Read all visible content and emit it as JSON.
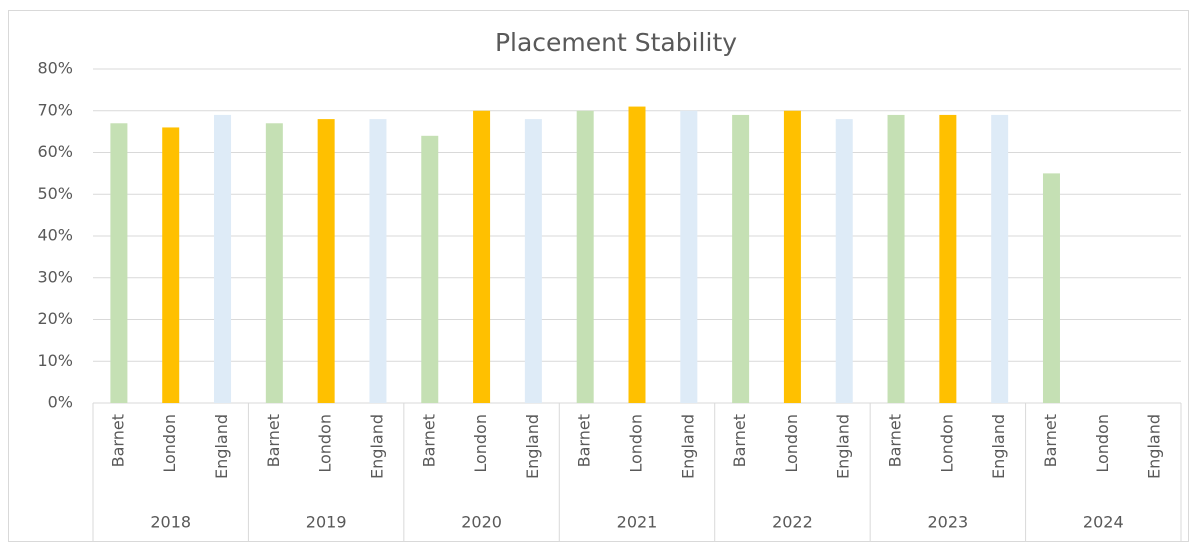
{
  "chart_data": {
    "type": "bar",
    "title": "Placement Stability",
    "categories": [
      "2018",
      "2019",
      "2020",
      "2021",
      "2022",
      "2023",
      "2024"
    ],
    "series": [
      {
        "name": "Barnet",
        "color": "#c5e0b4",
        "values": [
          67,
          67,
          64,
          70,
          69,
          69,
          55
        ]
      },
      {
        "name": "London",
        "color": "#ffc000",
        "values": [
          66,
          68,
          70,
          71,
          70,
          69,
          null
        ]
      },
      {
        "name": "England",
        "color": "#deebf7",
        "values": [
          69,
          68,
          68,
          70,
          68,
          69,
          null
        ]
      }
    ],
    "ylim": [
      0,
      80
    ],
    "yticks": [
      {
        "value": 0,
        "label": "0%"
      },
      {
        "value": 10,
        "label": "10%"
      },
      {
        "value": 20,
        "label": "20%"
      },
      {
        "value": 30,
        "label": "30%"
      },
      {
        "value": 40,
        "label": "40%"
      },
      {
        "value": 50,
        "label": "50%"
      },
      {
        "value": 60,
        "label": "60%"
      },
      {
        "value": 70,
        "label": "70%"
      },
      {
        "value": 80,
        "label": "80%"
      }
    ],
    "grid": true
  }
}
